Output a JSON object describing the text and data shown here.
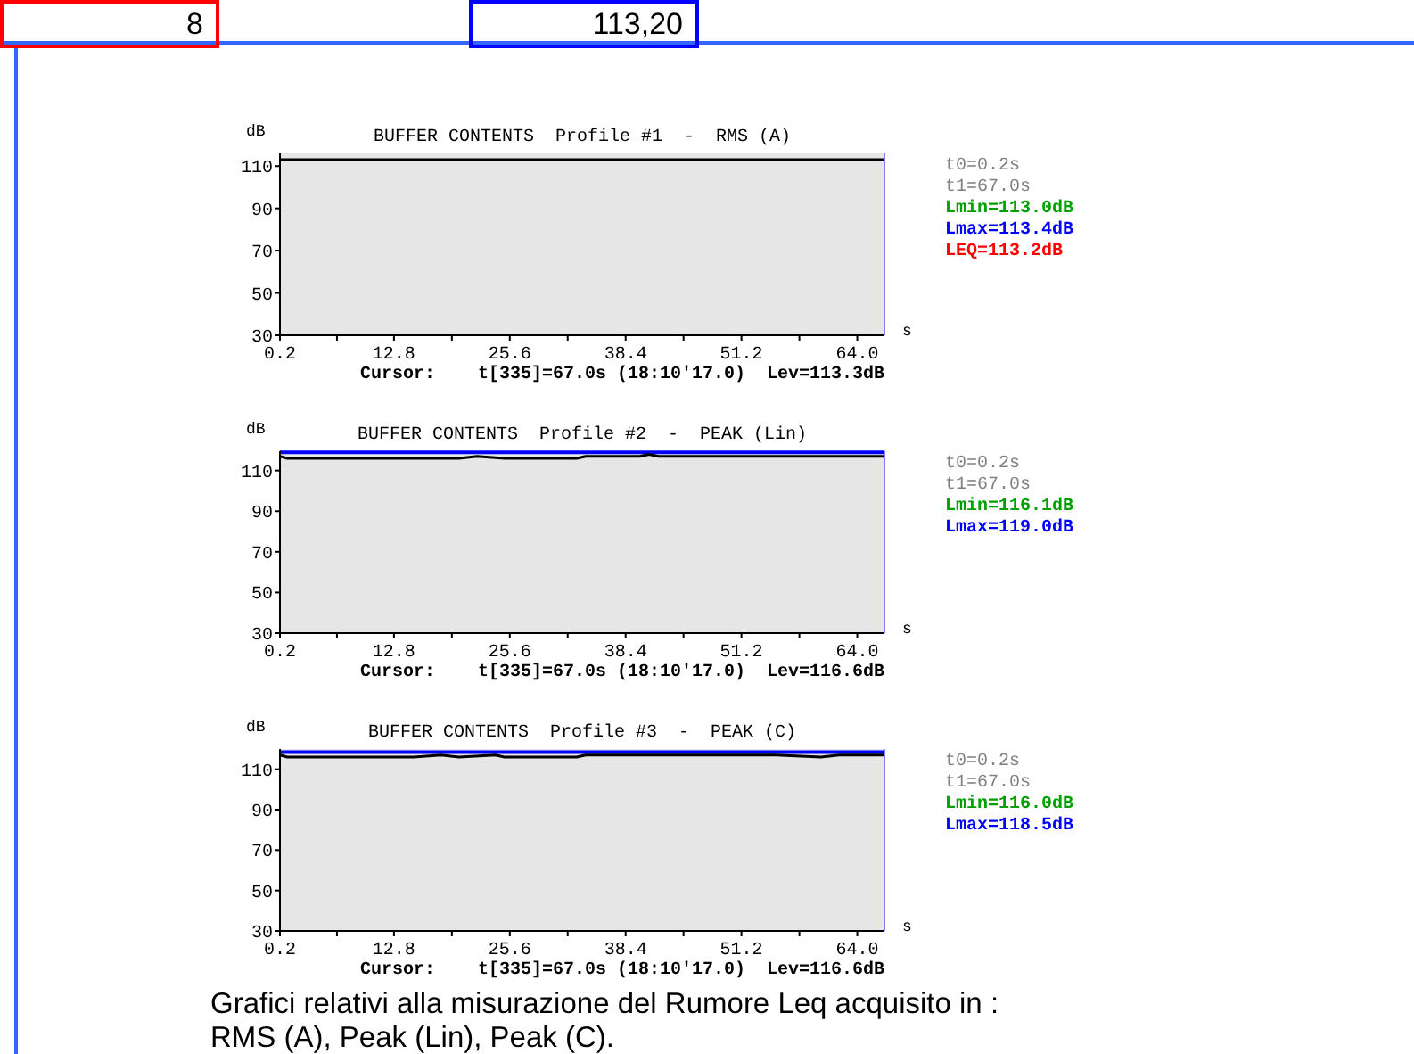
{
  "chart_data": [
    {
      "type": "other",
      "annotations": [
        "8",
        "113,20"
      ]
    },
    {
      "type": "line",
      "title": "BUFFER CONTENTS  Profile #1  -  RMS (A)",
      "xlabel": "s",
      "ylabel": "dB",
      "x": [
        0.2,
        5,
        10,
        15,
        20,
        25,
        30,
        35,
        40,
        45,
        46,
        47,
        50,
        55,
        60,
        65,
        67
      ],
      "series": [
        {
          "color": "#000000",
          "values": [
            113,
            113,
            113,
            113,
            113,
            113,
            113,
            113,
            113,
            113,
            113,
            113,
            113,
            113,
            113,
            113,
            113
          ]
        }
      ],
      "xlim": [
        0.2,
        67.0
      ],
      "ylim": [
        30,
        116
      ],
      "xticks": [
        0.2,
        {
          "value": 6.5,
          "label": null
        },
        12.8,
        {
          "value": 19.2,
          "label": null
        },
        25.6,
        {
          "value": 32.0,
          "label": null
        },
        38.4,
        {
          "value": 44.8,
          "label": null
        },
        51.2,
        {
          "value": 57.6,
          "label": null
        },
        {
          "value": 64.0,
          "label": "64.0"
        }
      ],
      "yticks": [
        30,
        50,
        70,
        90,
        110
      ],
      "annotations": [
        "Cursor:    t[335]=67.0s (18:10'17.0)  Lev=113.3dB",
        "t0=0.2s",
        "t1=67.0s",
        "Lmin=113.0dB",
        "Lmax=113.4dB",
        "LEQ=113.2dB"
      ]
    },
    {
      "type": "line",
      "title": "BUFFER CONTENTS  Profile #2  -  PEAK (Lin)",
      "xlabel": "s",
      "ylabel": "dB",
      "x": [
        0.2,
        1,
        2,
        5,
        10,
        15,
        20,
        22,
        25,
        30,
        33,
        34,
        35,
        36,
        37,
        38,
        40,
        41,
        42,
        43,
        44,
        45,
        47,
        50,
        55,
        60,
        64,
        67
      ],
      "series": [
        {
          "color": "#000000",
          "values": [
            117,
            116,
            116,
            116,
            116,
            116,
            116,
            117,
            116,
            116,
            116,
            117,
            117,
            117,
            117,
            117,
            117,
            118,
            117,
            117,
            117,
            117,
            117,
            117,
            117,
            117,
            117,
            117
          ]
        }
      ],
      "ref_lines": [
        {
          "axis": "y",
          "value": 119.0,
          "color": "#0000ff"
        }
      ],
      "xlim": [
        0.2,
        67.0
      ],
      "ylim": [
        30,
        119.5
      ],
      "xticks": [
        0.2,
        {
          "value": 6.5,
          "label": null
        },
        12.8,
        {
          "value": 19.2,
          "label": null
        },
        25.6,
        {
          "value": 32.0,
          "label": null
        },
        38.4,
        {
          "value": 44.8,
          "label": null
        },
        51.2,
        {
          "value": 57.6,
          "label": null
        },
        {
          "value": 64.0,
          "label": "64.0"
        }
      ],
      "yticks": [
        30,
        50,
        70,
        90,
        110
      ],
      "annotations": [
        "Cursor:    t[335]=67.0s (18:10'17.0)  Lev=116.6dB",
        "t0=0.2s",
        "t1=67.0s",
        "Lmin=116.1dB",
        "Lmax=119.0dB"
      ]
    },
    {
      "type": "line",
      "title": "BUFFER CONTENTS  Profile #3  -  PEAK (C)",
      "xlabel": "s",
      "ylabel": "dB",
      "x": [
        0.2,
        1,
        2,
        5,
        10,
        15,
        18,
        20,
        24,
        25,
        30,
        33,
        34,
        35,
        36,
        37,
        38,
        40,
        41,
        42,
        43,
        44,
        45,
        47,
        50,
        55,
        60,
        62,
        64,
        67
      ],
      "series": [
        {
          "color": "#000000",
          "values": [
            117,
            116,
            116,
            116,
            116,
            116,
            117,
            116,
            117,
            116,
            116,
            116,
            117,
            117,
            117,
            117,
            117,
            117,
            117,
            117,
            117,
            117,
            117,
            117,
            117,
            117,
            116,
            117,
            117,
            117
          ]
        }
      ],
      "ref_lines": [
        {
          "axis": "y",
          "value": 118.5,
          "color": "#0000ff"
        }
      ],
      "xlim": [
        0.2,
        67.0
      ],
      "ylim": [
        30,
        120
      ],
      "xticks": [
        0.2,
        {
          "value": 6.5,
          "label": null
        },
        12.8,
        {
          "value": 19.2,
          "label": null
        },
        25.6,
        {
          "value": 32.0,
          "label": null
        },
        38.4,
        {
          "value": 44.8,
          "label": null
        },
        51.2,
        {
          "value": 57.6,
          "label": null
        },
        {
          "value": 64.0,
          "label": "64.0"
        }
      ],
      "yticks": [
        30,
        50,
        70,
        90,
        110
      ],
      "annotations": [
        "Cursor:    t[335]=67.0s (18:10'17.0)  Lev=116.6dB",
        "t0=0.2s",
        "t1=67.0s",
        "Lmin=116.0dB",
        "Lmax=118.5dB"
      ]
    },
    {
      "type": "other",
      "annotations": [
        "Grafici relativi alla misurazione del Rumore Leq acquisito in : RMS (A), Peak (Lin), Peak (C)."
      ]
    }
  ]
}
